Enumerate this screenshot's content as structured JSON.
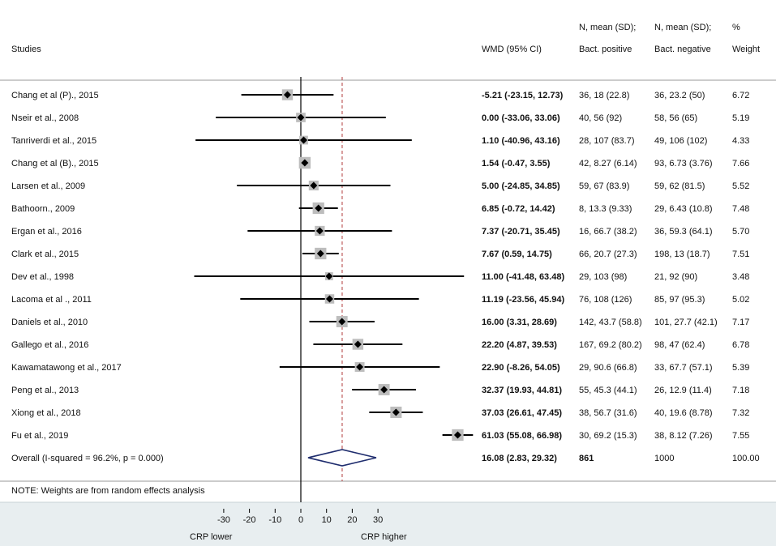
{
  "chart_data": {
    "type": "forest",
    "headers": {
      "studies": "Studies",
      "wmd": "WMD (95% CI)",
      "pos_line1": "N, mean (SD);",
      "pos_line2": "Bact. positive",
      "neg_line1": "N, mean (SD);",
      "neg_line2": "Bact. negative",
      "weight_line1": "%",
      "weight_line2": "Weight"
    },
    "studies": [
      {
        "label": "Chang et al (P)., 2015",
        "es": -5.21,
        "lo": -23.15,
        "hi": 12.73,
        "ci_text": "-5.21 (-23.15, 12.73)",
        "pos": "36, 18 (22.8)",
        "neg": "36, 23.2 (50)",
        "weight": 6.72
      },
      {
        "label": "Nseir et al., 2008",
        "es": 0.0,
        "lo": -33.06,
        "hi": 33.06,
        "ci_text": "0.00 (-33.06, 33.06)",
        "pos": "40, 56 (92)",
        "neg": "58, 56 (65)",
        "weight": 5.19
      },
      {
        "label": "Tanriverdi et al., 2015",
        "es": 1.1,
        "lo": -40.96,
        "hi": 43.16,
        "ci_text": "1.10 (-40.96, 43.16)",
        "pos": "28, 107 (83.7)",
        "neg": "49, 106 (102)",
        "weight": 4.33
      },
      {
        "label": "Chang et al (B)., 2015",
        "es": 1.54,
        "lo": -0.47,
        "hi": 3.55,
        "ci_text": "1.54 (-0.47, 3.55)",
        "pos": "42, 8.27 (6.14)",
        "neg": "93, 6.73 (3.76)",
        "weight": 7.66
      },
      {
        "label": "Larsen et al., 2009",
        "es": 5.0,
        "lo": -24.85,
        "hi": 34.85,
        "ci_text": "5.00 (-24.85, 34.85)",
        "pos": "59, 67 (83.9)",
        "neg": "59, 62 (81.5)",
        "weight": 5.52
      },
      {
        "label": "Bathoorn., 2009",
        "es": 6.85,
        "lo": -0.72,
        "hi": 14.42,
        "ci_text": "6.85 (-0.72, 14.42)",
        "pos": "8, 13.3 (9.33)",
        "neg": "29, 6.43 (10.8)",
        "weight": 7.48
      },
      {
        "label": "Ergan et al., 2016",
        "es": 7.37,
        "lo": -20.71,
        "hi": 35.45,
        "ci_text": "7.37 (-20.71, 35.45)",
        "pos": "16, 66.7 (38.2)",
        "neg": "36, 59.3 (64.1)",
        "weight": 5.7
      },
      {
        "label": "Clark et al., 2015",
        "es": 7.67,
        "lo": 0.59,
        "hi": 14.75,
        "ci_text": "7.67 (0.59, 14.75)",
        "pos": "66, 20.7 (27.3)",
        "neg": "198, 13 (18.7)",
        "weight": 7.51
      },
      {
        "label": "Dev et al., 1998",
        "es": 11.0,
        "lo": -41.48,
        "hi": 63.48,
        "ci_text": "11.00 (-41.48, 63.48)",
        "pos": "29, 103 (98)",
        "neg": "21, 92 (90)",
        "weight": 3.48
      },
      {
        "label": "Lacoma et al ., 2011",
        "es": 11.19,
        "lo": -23.56,
        "hi": 45.94,
        "ci_text": "11.19 (-23.56, 45.94)",
        "pos": "76, 108 (126)",
        "neg": "85, 97 (95.3)",
        "weight": 5.02
      },
      {
        "label": "Daniels et al., 2010",
        "es": 16.0,
        "lo": 3.31,
        "hi": 28.69,
        "ci_text": "16.00 (3.31, 28.69)",
        "pos": "142, 43.7 (58.8)",
        "neg": "101, 27.7 (42.1)",
        "weight": 7.17
      },
      {
        "label": "Gallego et al., 2016",
        "es": 22.2,
        "lo": 4.87,
        "hi": 39.53,
        "ci_text": "22.20 (4.87, 39.53)",
        "pos": "167, 69.2 (80.2)",
        "neg": "98, 47 (62.4)",
        "weight": 6.78
      },
      {
        "label": "Kawamatawong et al., 2017",
        "es": 22.9,
        "lo": -8.26,
        "hi": 54.05,
        "ci_text": "22.90 (-8.26, 54.05)",
        "pos": "29, 90.6 (66.8)",
        "neg": "33, 67.7 (57.1)",
        "weight": 5.39
      },
      {
        "label": "Peng et al., 2013",
        "es": 32.37,
        "lo": 19.93,
        "hi": 44.81,
        "ci_text": "32.37 (19.93, 44.81)",
        "pos": "55, 45.3 (44.1)",
        "neg": "26, 12.9 (11.4)",
        "weight": 7.18
      },
      {
        "label": "Xiong et al., 2018",
        "es": 37.03,
        "lo": 26.61,
        "hi": 47.45,
        "ci_text": "37.03 (26.61, 47.45)",
        "pos": "38, 56.7 (31.6)",
        "neg": "40, 19.6 (8.78)",
        "weight": 7.32
      },
      {
        "label": "Fu et al., 2019",
        "es": 61.03,
        "lo": 55.08,
        "hi": 66.98,
        "ci_text": "61.03 (55.08, 66.98)",
        "pos": "30, 69.2 (15.3)",
        "neg": "38, 8.12 (7.26)",
        "weight": 7.55
      }
    ],
    "overall": {
      "label": "Overall  (I-squared = 96.2%, p = 0.000)",
      "es": 16.08,
      "lo": 2.83,
      "hi": 29.32,
      "ci_text": "16.08 (2.83, 29.32)",
      "pos": "861",
      "neg": "1000",
      "weight": "100.00"
    },
    "note": "NOTE: Weights are from random effects analysis",
    "x_ticks": [
      -30,
      -20,
      -10,
      0,
      10,
      20,
      30
    ],
    "x_labels": {
      "left": "CRP lower",
      "right": "CRP higher"
    },
    "colors": {
      "diamond_stroke": "#1f2d6e",
      "overall_line": "#b03a3a",
      "axis_band": "#e8eef0",
      "box": "#bdbdbd"
    }
  }
}
